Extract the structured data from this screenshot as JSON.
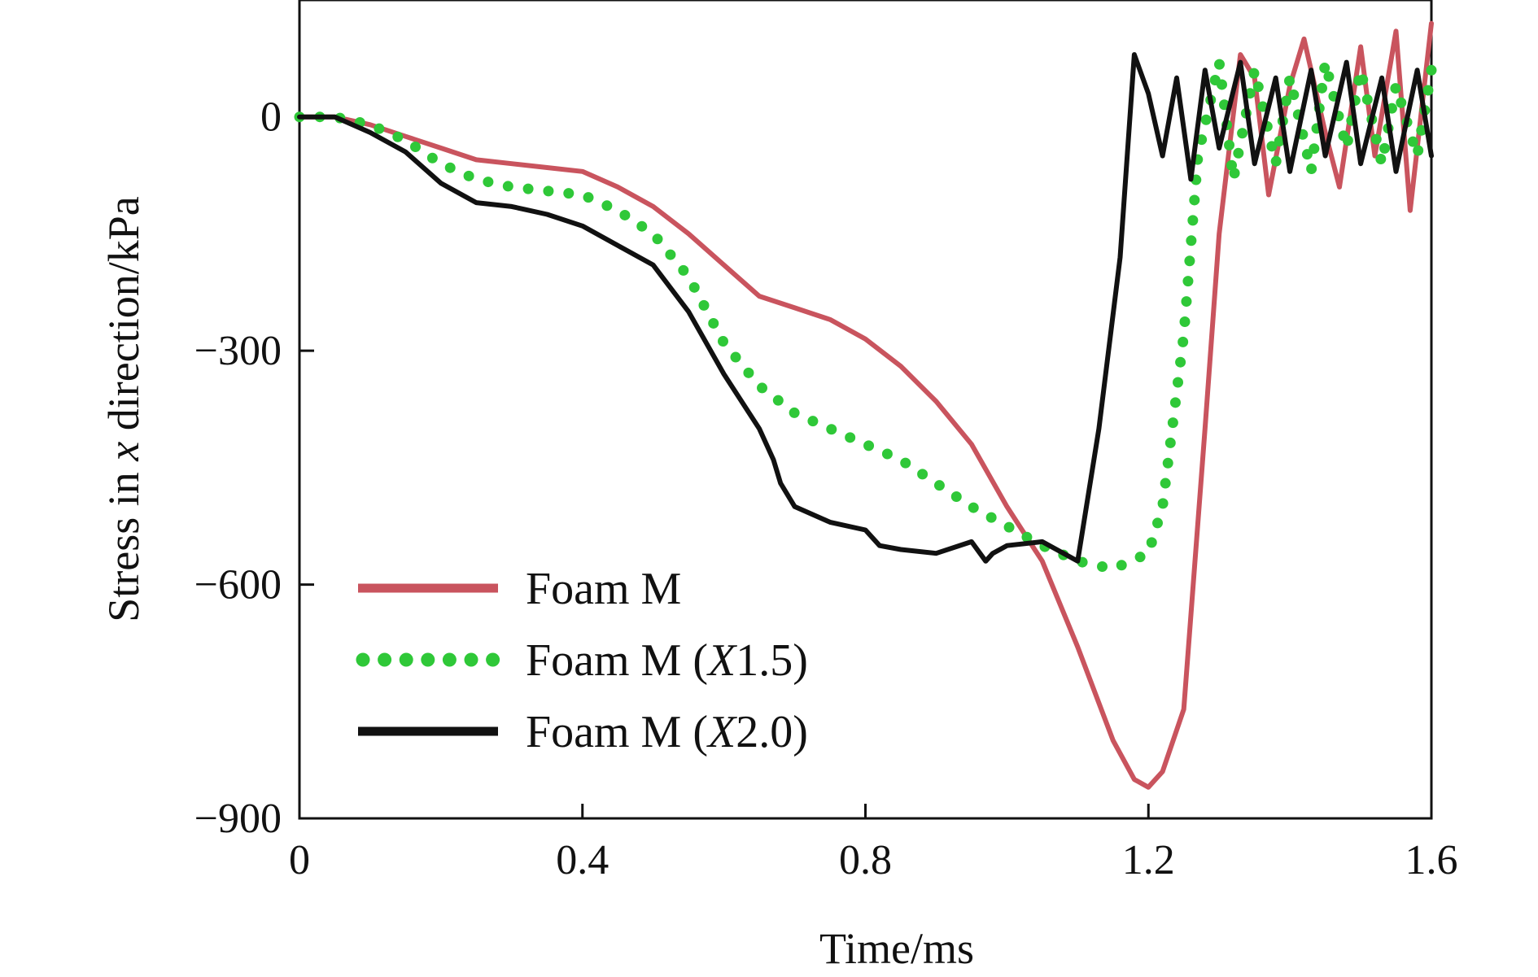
{
  "chart_data": {
    "type": "line",
    "title": "",
    "xlabel": "Time/ms",
    "ylabel_parts": [
      "Stress in ",
      "x",
      " direction/kPa"
    ],
    "xlim": [
      0,
      1.6
    ],
    "ylim": [
      -900,
      150
    ],
    "x_ticks": [
      0,
      0.4,
      0.8,
      1.2,
      1.6
    ],
    "x_tick_labels": [
      "0",
      "0.4",
      "0.8",
      "1.2",
      "1.6"
    ],
    "y_ticks": [
      0,
      -300,
      -600,
      -900
    ],
    "y_tick_labels": [
      "0",
      "−300",
      "−600",
      "−900"
    ],
    "grid": false,
    "legend_position": "bottom-left",
    "series": [
      {
        "legend": [
          "Foam M"
        ],
        "color": "#c9545e",
        "style": "solid",
        "x": [
          0,
          0.05,
          0.1,
          0.15,
          0.2,
          0.25,
          0.3,
          0.35,
          0.4,
          0.45,
          0.5,
          0.55,
          0.6,
          0.65,
          0.7,
          0.75,
          0.8,
          0.85,
          0.9,
          0.95,
          1.0,
          1.05,
          1.1,
          1.15,
          1.18,
          1.2,
          1.22,
          1.25,
          1.28,
          1.3,
          1.33,
          1.35,
          1.37,
          1.4,
          1.42,
          1.45,
          1.47,
          1.5,
          1.52,
          1.55,
          1.57,
          1.6
        ],
        "y": [
          0,
          0,
          -10,
          -25,
          -40,
          -55,
          -60,
          -65,
          -70,
          -90,
          -115,
          -150,
          -190,
          -230,
          -245,
          -260,
          -285,
          -320,
          -365,
          -420,
          -500,
          -570,
          -680,
          -800,
          -850,
          -860,
          -840,
          -760,
          -400,
          -150,
          80,
          50,
          -100,
          40,
          100,
          -20,
          -90,
          90,
          -50,
          110,
          -120,
          120
        ]
      },
      {
        "legend": [
          "Foam M (",
          "X",
          "1.5)"
        ],
        "color": "#2fc838",
        "style": "dotted",
        "x": [
          0,
          0.05,
          0.1,
          0.15,
          0.2,
          0.25,
          0.3,
          0.35,
          0.4,
          0.45,
          0.5,
          0.55,
          0.6,
          0.65,
          0.7,
          0.75,
          0.8,
          0.85,
          0.9,
          0.95,
          1.0,
          1.05,
          1.1,
          1.15,
          1.2,
          1.22,
          1.25,
          1.27,
          1.3,
          1.32,
          1.35,
          1.38,
          1.4,
          1.43,
          1.45,
          1.48,
          1.5,
          1.53,
          1.55,
          1.58,
          1.6
        ],
        "y": [
          0,
          0,
          -10,
          -30,
          -60,
          -80,
          -90,
          -95,
          -100,
          -120,
          -150,
          -205,
          -290,
          -345,
          -380,
          -400,
          -420,
          -440,
          -470,
          -500,
          -525,
          -550,
          -570,
          -580,
          -560,
          -500,
          -280,
          -50,
          70,
          -80,
          60,
          -60,
          50,
          -70,
          70,
          -40,
          60,
          -60,
          40,
          -50,
          60
        ]
      },
      {
        "legend": [
          "Foam M (",
          "X",
          "2.0)"
        ],
        "color": "#111111",
        "style": "solid",
        "x": [
          0,
          0.05,
          0.1,
          0.15,
          0.2,
          0.25,
          0.3,
          0.35,
          0.4,
          0.45,
          0.5,
          0.55,
          0.6,
          0.65,
          0.67,
          0.68,
          0.7,
          0.75,
          0.8,
          0.82,
          0.85,
          0.9,
          0.95,
          0.97,
          0.98,
          1.0,
          1.05,
          1.1,
          1.13,
          1.16,
          1.18,
          1.2,
          1.22,
          1.24,
          1.26,
          1.28,
          1.3,
          1.33,
          1.35,
          1.38,
          1.4,
          1.43,
          1.45,
          1.48,
          1.5,
          1.53,
          1.55,
          1.58,
          1.6
        ],
        "y": [
          0,
          0,
          -20,
          -45,
          -85,
          -110,
          -115,
          -125,
          -140,
          -165,
          -190,
          -250,
          -330,
          -400,
          -440,
          -470,
          -500,
          -520,
          -530,
          -550,
          -555,
          -560,
          -545,
          -570,
          -560,
          -550,
          -545,
          -570,
          -400,
          -180,
          80,
          30,
          -50,
          50,
          -80,
          60,
          -40,
          70,
          -60,
          50,
          -70,
          60,
          -50,
          70,
          -60,
          50,
          -70,
          60,
          -50
        ]
      }
    ]
  }
}
